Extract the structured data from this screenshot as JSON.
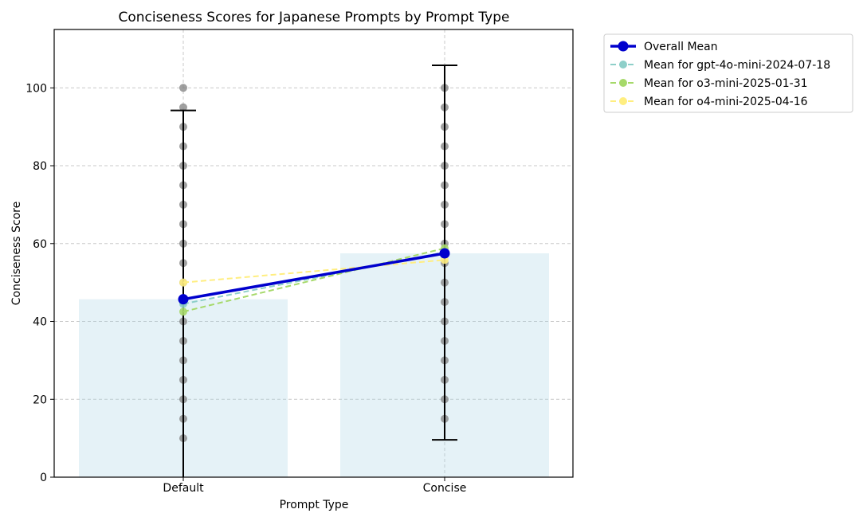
{
  "chart_data": {
    "type": "bar",
    "title": "Conciseness Scores for Japanese Prompts by Prompt Type",
    "xlabel": "Prompt Type",
    "ylabel": "Conciseness Score",
    "categories": [
      "Default",
      "Concise"
    ],
    "ylim": [
      0,
      115
    ],
    "yticks": [
      0,
      20,
      40,
      60,
      80,
      100
    ],
    "grid": true,
    "legend_placement": "outside-top-right",
    "bars": {
      "values": [
        45.7,
        57.5
      ],
      "color": "#add8e6"
    },
    "error_bars": [
      {
        "category": "Default",
        "mean": 45.7,
        "low": 0,
        "high": 94.2
      },
      {
        "category": "Concise",
        "mean": 57.5,
        "low": 9.6,
        "high": 105.8
      }
    ],
    "scatter_points": [
      {
        "category": "Default",
        "values": [
          10,
          15,
          20,
          25,
          30,
          35,
          40,
          45,
          50,
          55,
          60,
          65,
          70,
          75,
          80,
          85,
          90,
          95,
          100
        ]
      },
      {
        "category": "Concise",
        "values": [
          15,
          20,
          25,
          30,
          35,
          40,
          45,
          50,
          55,
          60,
          65,
          70,
          75,
          80,
          85,
          90,
          95,
          100
        ]
      }
    ],
    "series": [
      {
        "name": "Overall Mean",
        "values": [
          45.7,
          57.5
        ],
        "color": "#0000cd",
        "style": "solid"
      },
      {
        "name": "Mean for gpt-4o-mini-2024-07-18",
        "values": [
          44.5,
          57.8
        ],
        "color": "#8ecfc9",
        "style": "dashed"
      },
      {
        "name": "Mean for o3-mini-2025-01-31",
        "values": [
          42.5,
          58.8
        ],
        "color": "#a6d96a",
        "style": "dashed"
      },
      {
        "name": "Mean for o4-mini-2025-04-16",
        "values": [
          50.0,
          55.8
        ],
        "color": "#ffee80",
        "style": "dashed"
      }
    ]
  }
}
